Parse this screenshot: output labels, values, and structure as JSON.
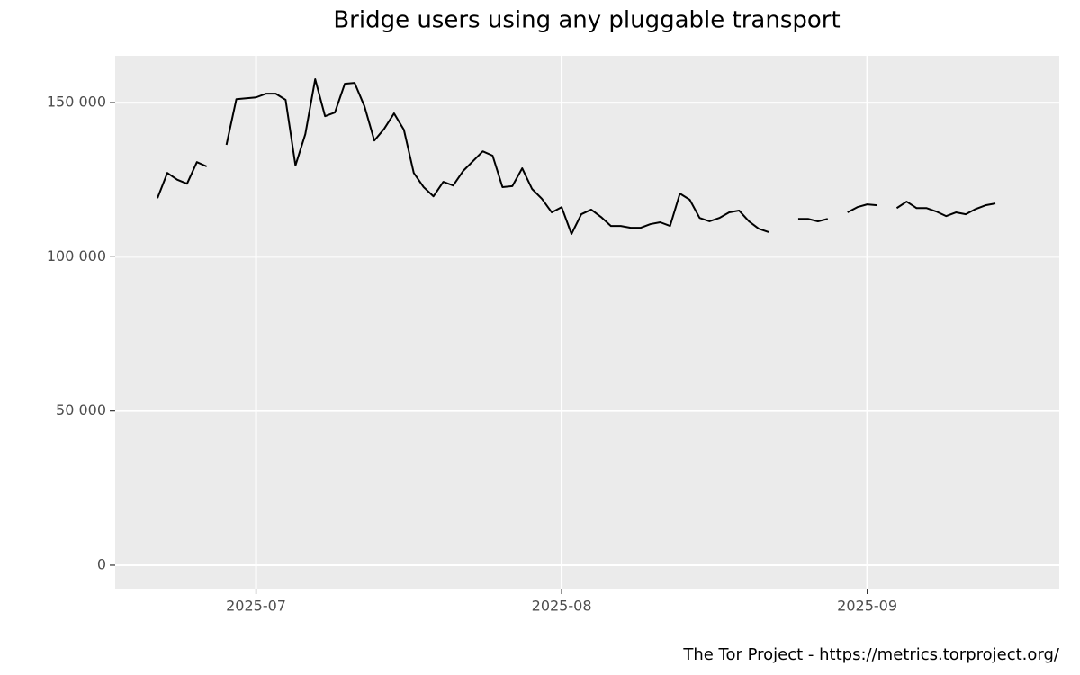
{
  "chart_data": {
    "type": "line",
    "title": "Bridge users using any pluggable transport",
    "caption": "The Tor Project - https://metrics.torproject.org/",
    "categories": [
      null,
      null,
      null,
      null,
      null,
      null,
      null,
      null,
      null,
      null,
      "2025-07",
      null,
      null,
      null,
      null,
      null,
      null,
      null,
      null,
      null,
      null,
      null,
      null,
      null,
      null,
      null,
      null,
      null,
      null,
      null,
      null,
      null,
      null,
      null,
      null,
      null,
      null,
      null,
      null,
      null,
      null,
      "2025-08",
      null,
      null,
      null,
      null,
      null,
      null,
      null,
      null,
      null,
      null,
      null,
      null,
      null,
      null,
      null,
      null,
      null,
      null,
      null,
      null,
      null,
      null,
      null,
      null,
      null,
      null,
      null,
      null,
      null,
      null,
      "2025-09",
      null,
      null,
      null,
      null,
      null,
      null,
      null,
      null,
      null,
      null,
      null,
      null,
      null
    ],
    "series": [
      {
        "color": "#000000",
        "values": [
          119000,
          127200,
          125000,
          123700,
          130700,
          129300,
          null,
          136300,
          151100,
          151400,
          151700,
          152900,
          152900,
          150900,
          129600,
          139800,
          157600,
          145600,
          146800,
          156100,
          156400,
          148800,
          137700,
          141500,
          146500,
          141200,
          127200,
          122600,
          119600,
          124300,
          123100,
          127800,
          131000,
          134200,
          132800,
          122600,
          122900,
          128700,
          122000,
          118800,
          114400,
          116100,
          107400,
          113800,
          115300,
          112900,
          110000,
          110000,
          109400,
          109400,
          110600,
          111200,
          110000,
          120500,
          118500,
          112600,
          111500,
          112600,
          114400,
          115000,
          111500,
          109100,
          108000,
          null,
          null,
          112300,
          112300,
          111500,
          112300,
          null,
          114400,
          116100,
          117000,
          116700,
          null,
          115800,
          117900,
          115800,
          115800,
          114700,
          113200,
          114400,
          113800,
          115500,
          116700,
          117300
        ]
      }
    ],
    "ylim": [
      -7600,
      165200
    ],
    "yticks": [
      0,
      {
        "value": 50000,
        "label": "50 000"
      },
      {
        "value": 100000,
        "label": "100 000"
      },
      {
        "value": 150000,
        "label": "150 000"
      }
    ],
    "grid": true
  }
}
